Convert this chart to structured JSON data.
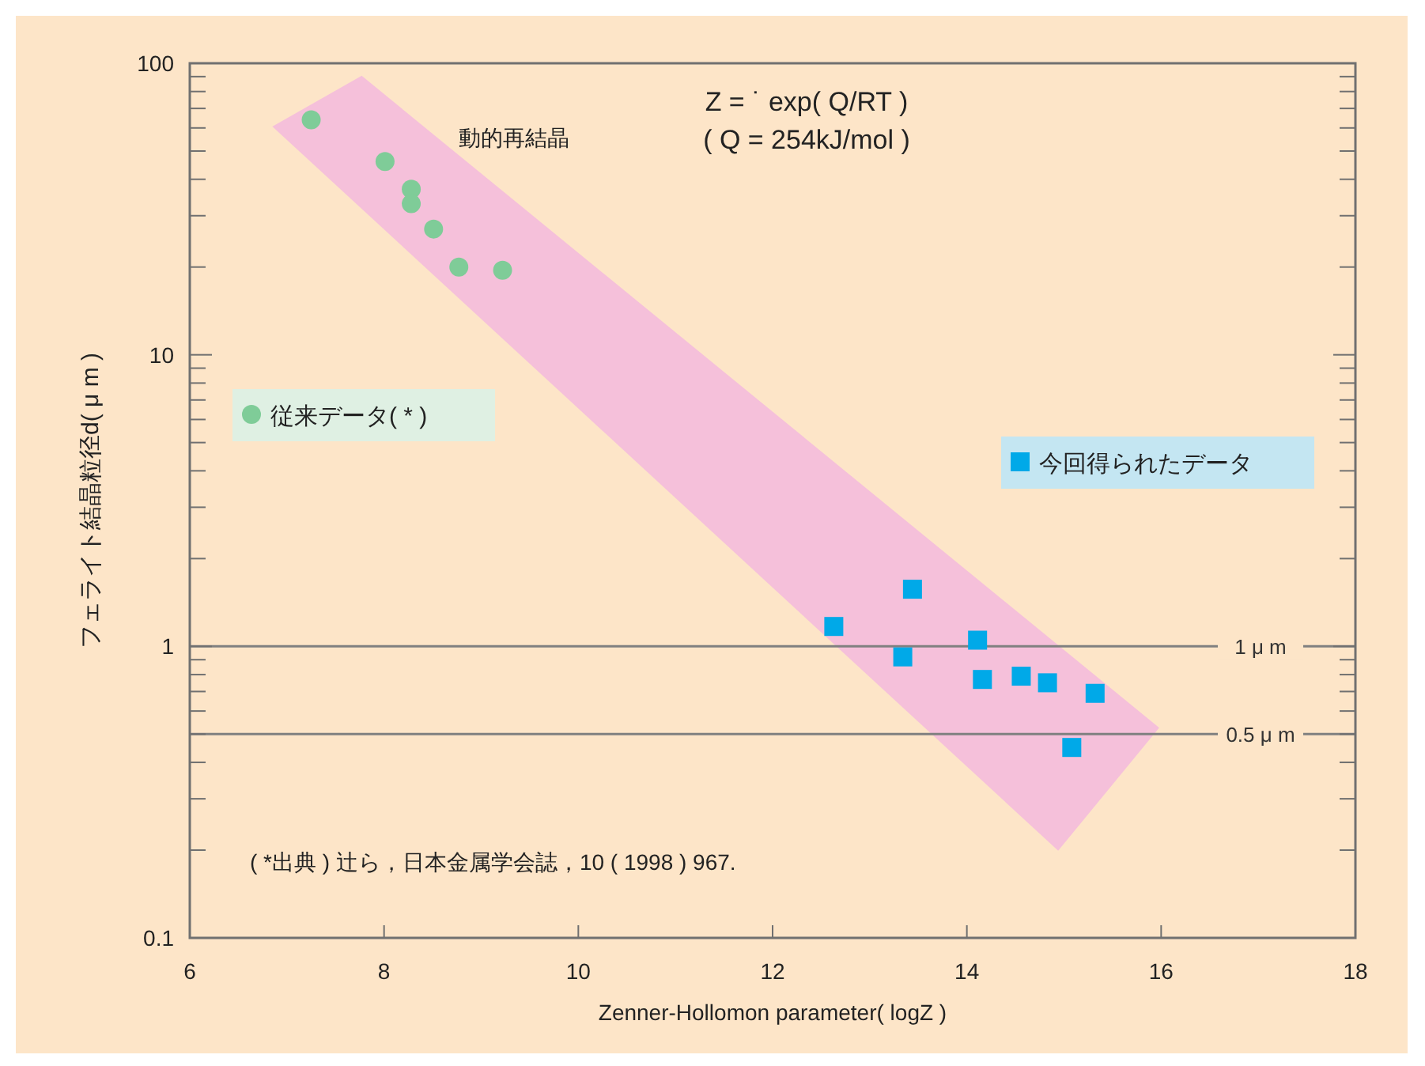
{
  "chart_data": {
    "type": "scatter",
    "xlabel": "Zenner-Hollomon parameter( logZ )",
    "ylabel": "フェライト結晶粒径d( μ m )",
    "log": "y",
    "xlim": [
      6,
      18
    ],
    "ylim": [
      0.1,
      100
    ],
    "xticks": [
      6,
      8,
      10,
      12,
      14,
      16,
      18
    ],
    "yticks": [
      0.1,
      {
        "value": 0.2,
        "label": null
      },
      {
        "value": 0.3,
        "label": null
      },
      {
        "value": 0.4,
        "label": null
      },
      {
        "value": 0.5,
        "label": null
      },
      {
        "value": 0.6,
        "label": null
      },
      {
        "value": 0.7,
        "label": null
      },
      {
        "value": 0.8,
        "label": null
      },
      {
        "value": 0.9,
        "label": null
      },
      1,
      {
        "value": 2,
        "label": null
      },
      {
        "value": 3,
        "label": null
      },
      {
        "value": 4,
        "label": null
      },
      {
        "value": 5,
        "label": null
      },
      {
        "value": 6,
        "label": null
      },
      {
        "value": 7,
        "label": null
      },
      {
        "value": 8,
        "label": null
      },
      {
        "value": 9,
        "label": null
      },
      10,
      {
        "value": 20,
        "label": null
      },
      {
        "value": 30,
        "label": null
      },
      {
        "value": 40,
        "label": null
      },
      {
        "value": 50,
        "label": null
      },
      {
        "value": 60,
        "label": null
      },
      {
        "value": 70,
        "label": null
      },
      {
        "value": 80,
        "label": null
      },
      {
        "value": 90,
        "label": null
      },
      100
    ],
    "grid": false,
    "legend": "right",
    "series": [
      {
        "type": "area",
        "color": "#f5c0da",
        "x": [
          6.85,
          7.77,
          15.98,
          14.94
        ],
        "values": [
          60.7,
          90.6,
          0.526,
          0.199
        ]
      },
      {
        "name": "従来データ( * )",
        "color": "#7fcc98",
        "marker": "circle",
        "x": [
          7.25,
          8.01,
          8.28,
          8.28,
          8.51,
          8.77,
          9.22
        ],
        "values": [
          64,
          46,
          37,
          33,
          27,
          20,
          19.5
        ]
      },
      {
        "name": "今回得られたデータ",
        "color": "#00a9e8",
        "marker": "square",
        "x": [
          13.44,
          12.63,
          14.11,
          13.34,
          14.16,
          14.56,
          14.83,
          15.32,
          15.08
        ],
        "values": [
          1.57,
          1.17,
          1.05,
          0.92,
          0.77,
          0.79,
          0.75,
          0.69,
          0.45
        ]
      }
    ],
    "ref_lines": [
      {
        "axis": "y",
        "value": 1,
        "label": "1 μ m",
        "color": "#808080"
      },
      {
        "axis": "y",
        "value": 0.5,
        "label": "0.5 μ m",
        "color": "#808080"
      }
    ],
    "annotations": [
      "Z = ˙ exp( Q/RT )",
      "( Q = 254kJ/mol )",
      "動的再結晶",
      "( *出典 ) 辻ら，日本金属学会誌，10 ( 1998 ) 967."
    ]
  }
}
